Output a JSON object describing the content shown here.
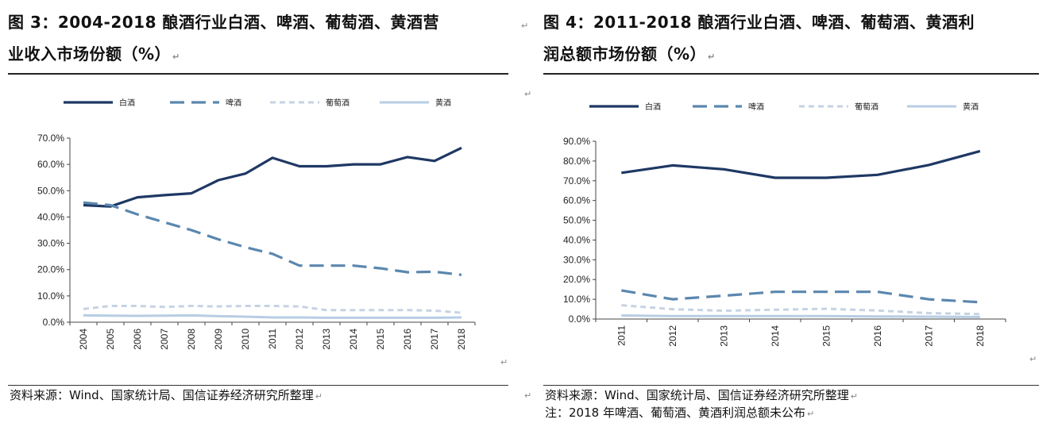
{
  "return_mark": "↵",
  "chart_data": [
    {
      "type": "line",
      "title_line1": "图 3：2004-2018 酿酒行业白酒、啤酒、葡萄酒、黄酒营",
      "title_line2": "业收入市场份额（%）",
      "categories": [
        "2004",
        "2005",
        "2006",
        "2007",
        "2008",
        "2009",
        "2010",
        "2011",
        "2012",
        "2013",
        "2014",
        "2015",
        "2016",
        "2017",
        "2018"
      ],
      "ylim": [
        0,
        70
      ],
      "yticks": [
        "0.0%",
        "10.0%",
        "20.0%",
        "30.0%",
        "40.0%",
        "50.0%",
        "60.0%",
        "70.0%"
      ],
      "ytick_values": [
        0,
        10,
        20,
        30,
        40,
        50,
        60,
        70
      ],
      "series": [
        {
          "name": "白酒",
          "color": "#1f3864",
          "dash": "",
          "width": 3.2,
          "values": [
            44.5,
            44.0,
            47.5,
            48.3,
            49.0,
            54.0,
            56.5,
            62.5,
            59.3,
            59.3,
            60.0,
            60.0,
            62.8,
            61.3,
            66.3
          ]
        },
        {
          "name": "啤酒",
          "color": "#5b87ae",
          "dash": "18,9",
          "width": 3.2,
          "values": [
            45.5,
            44.5,
            41.0,
            38.0,
            35.0,
            31.5,
            28.5,
            26.0,
            21.5,
            21.5,
            21.5,
            20.5,
            19.0,
            19.2,
            18.0
          ]
        },
        {
          "name": "葡萄酒",
          "color": "#c5d3e3",
          "dash": "7,5",
          "width": 3,
          "values": [
            5.0,
            6.2,
            6.2,
            5.8,
            6.2,
            6.0,
            6.2,
            6.2,
            6.0,
            4.6,
            4.6,
            4.6,
            4.6,
            4.4,
            3.6
          ]
        },
        {
          "name": "黄酒",
          "color": "#b7cde4",
          "dash": "",
          "width": 3,
          "values": [
            2.6,
            2.5,
            2.4,
            2.5,
            2.6,
            2.3,
            2.1,
            1.8,
            1.8,
            1.7,
            1.7,
            1.7,
            1.7,
            1.7,
            1.8
          ]
        }
      ],
      "source": "资料来源：Wind、国家统计局、国信证券经济研究所整理"
    },
    {
      "type": "line",
      "title_line1": "图 4：2011-2018 酿酒行业白酒、啤酒、葡萄酒、黄酒利",
      "title_line2": "润总额市场份额（%）",
      "categories": [
        "2011",
        "2012",
        "2013",
        "2014",
        "2015",
        "2016",
        "2017",
        "2018"
      ],
      "ylim": [
        0,
        90
      ],
      "yticks": [
        "0.0%",
        "10.0%",
        "20.0%",
        "30.0%",
        "40.0%",
        "50.0%",
        "60.0%",
        "70.0%",
        "80.0%",
        "90.0%"
      ],
      "ytick_values": [
        0,
        10,
        20,
        30,
        40,
        50,
        60,
        70,
        80,
        90
      ],
      "series": [
        {
          "name": "白酒",
          "color": "#1f3864",
          "dash": "",
          "width": 3.2,
          "values": [
            74.0,
            77.8,
            75.8,
            71.5,
            71.5,
            73.0,
            78.0,
            85.0
          ]
        },
        {
          "name": "啤酒",
          "color": "#5b87ae",
          "dash": "18,9",
          "width": 3.2,
          "values": [
            14.5,
            10.0,
            11.8,
            13.8,
            13.8,
            13.8,
            10.0,
            8.5
          ]
        },
        {
          "name": "葡萄酒",
          "color": "#c5d3e3",
          "dash": "7,5",
          "width": 3,
          "values": [
            7.0,
            5.0,
            4.2,
            4.7,
            5.2,
            4.3,
            3.0,
            2.5
          ]
        },
        {
          "name": "黄酒",
          "color": "#b7cde4",
          "dash": "",
          "width": 3,
          "values": [
            1.8,
            1.5,
            1.5,
            1.5,
            1.5,
            1.3,
            1.2,
            1.0
          ]
        }
      ],
      "source": "资料来源：Wind、国家统计局、国信证券经济研究所整理",
      "note": "注：2018 年啤酒、葡萄酒、黄酒利润总额未公布"
    }
  ]
}
